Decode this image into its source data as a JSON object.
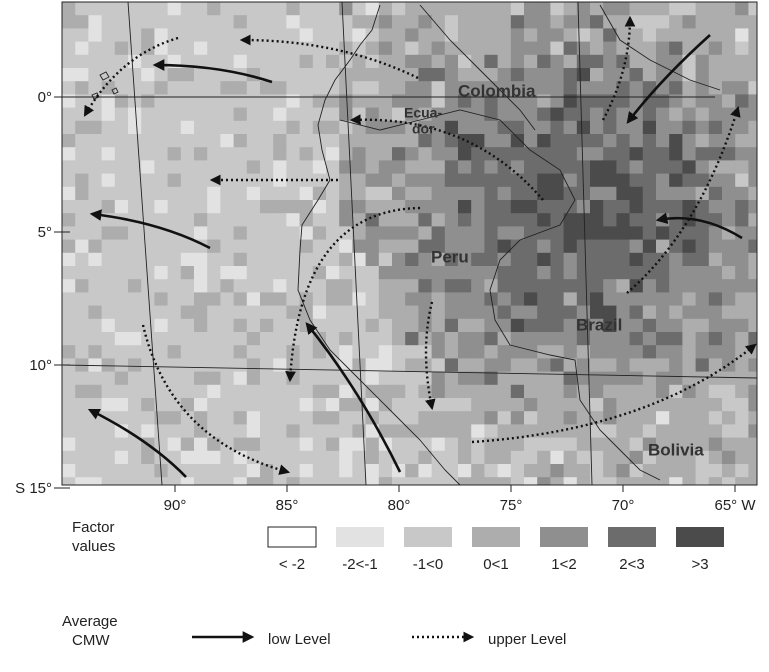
{
  "map": {
    "lat_labels": [
      "0°",
      "5°",
      "10°",
      "S 15°"
    ],
    "lon_labels": [
      "90°",
      "85°",
      "80°",
      "75°",
      "70°",
      "65° W"
    ],
    "places": [
      "Colombia",
      "Ecua-",
      "dor",
      "Peru",
      "Brazil",
      "Bolivia"
    ]
  },
  "legend": {
    "factor_title": [
      "Factor",
      "values"
    ],
    "classes": [
      "< -2",
      "-2<-1",
      "-1<0",
      "0<1",
      "1<2",
      "2<3",
      ">3"
    ],
    "cmw_title": [
      "Average",
      "CMW"
    ],
    "low": "low Level",
    "upper": "upper Level"
  }
}
